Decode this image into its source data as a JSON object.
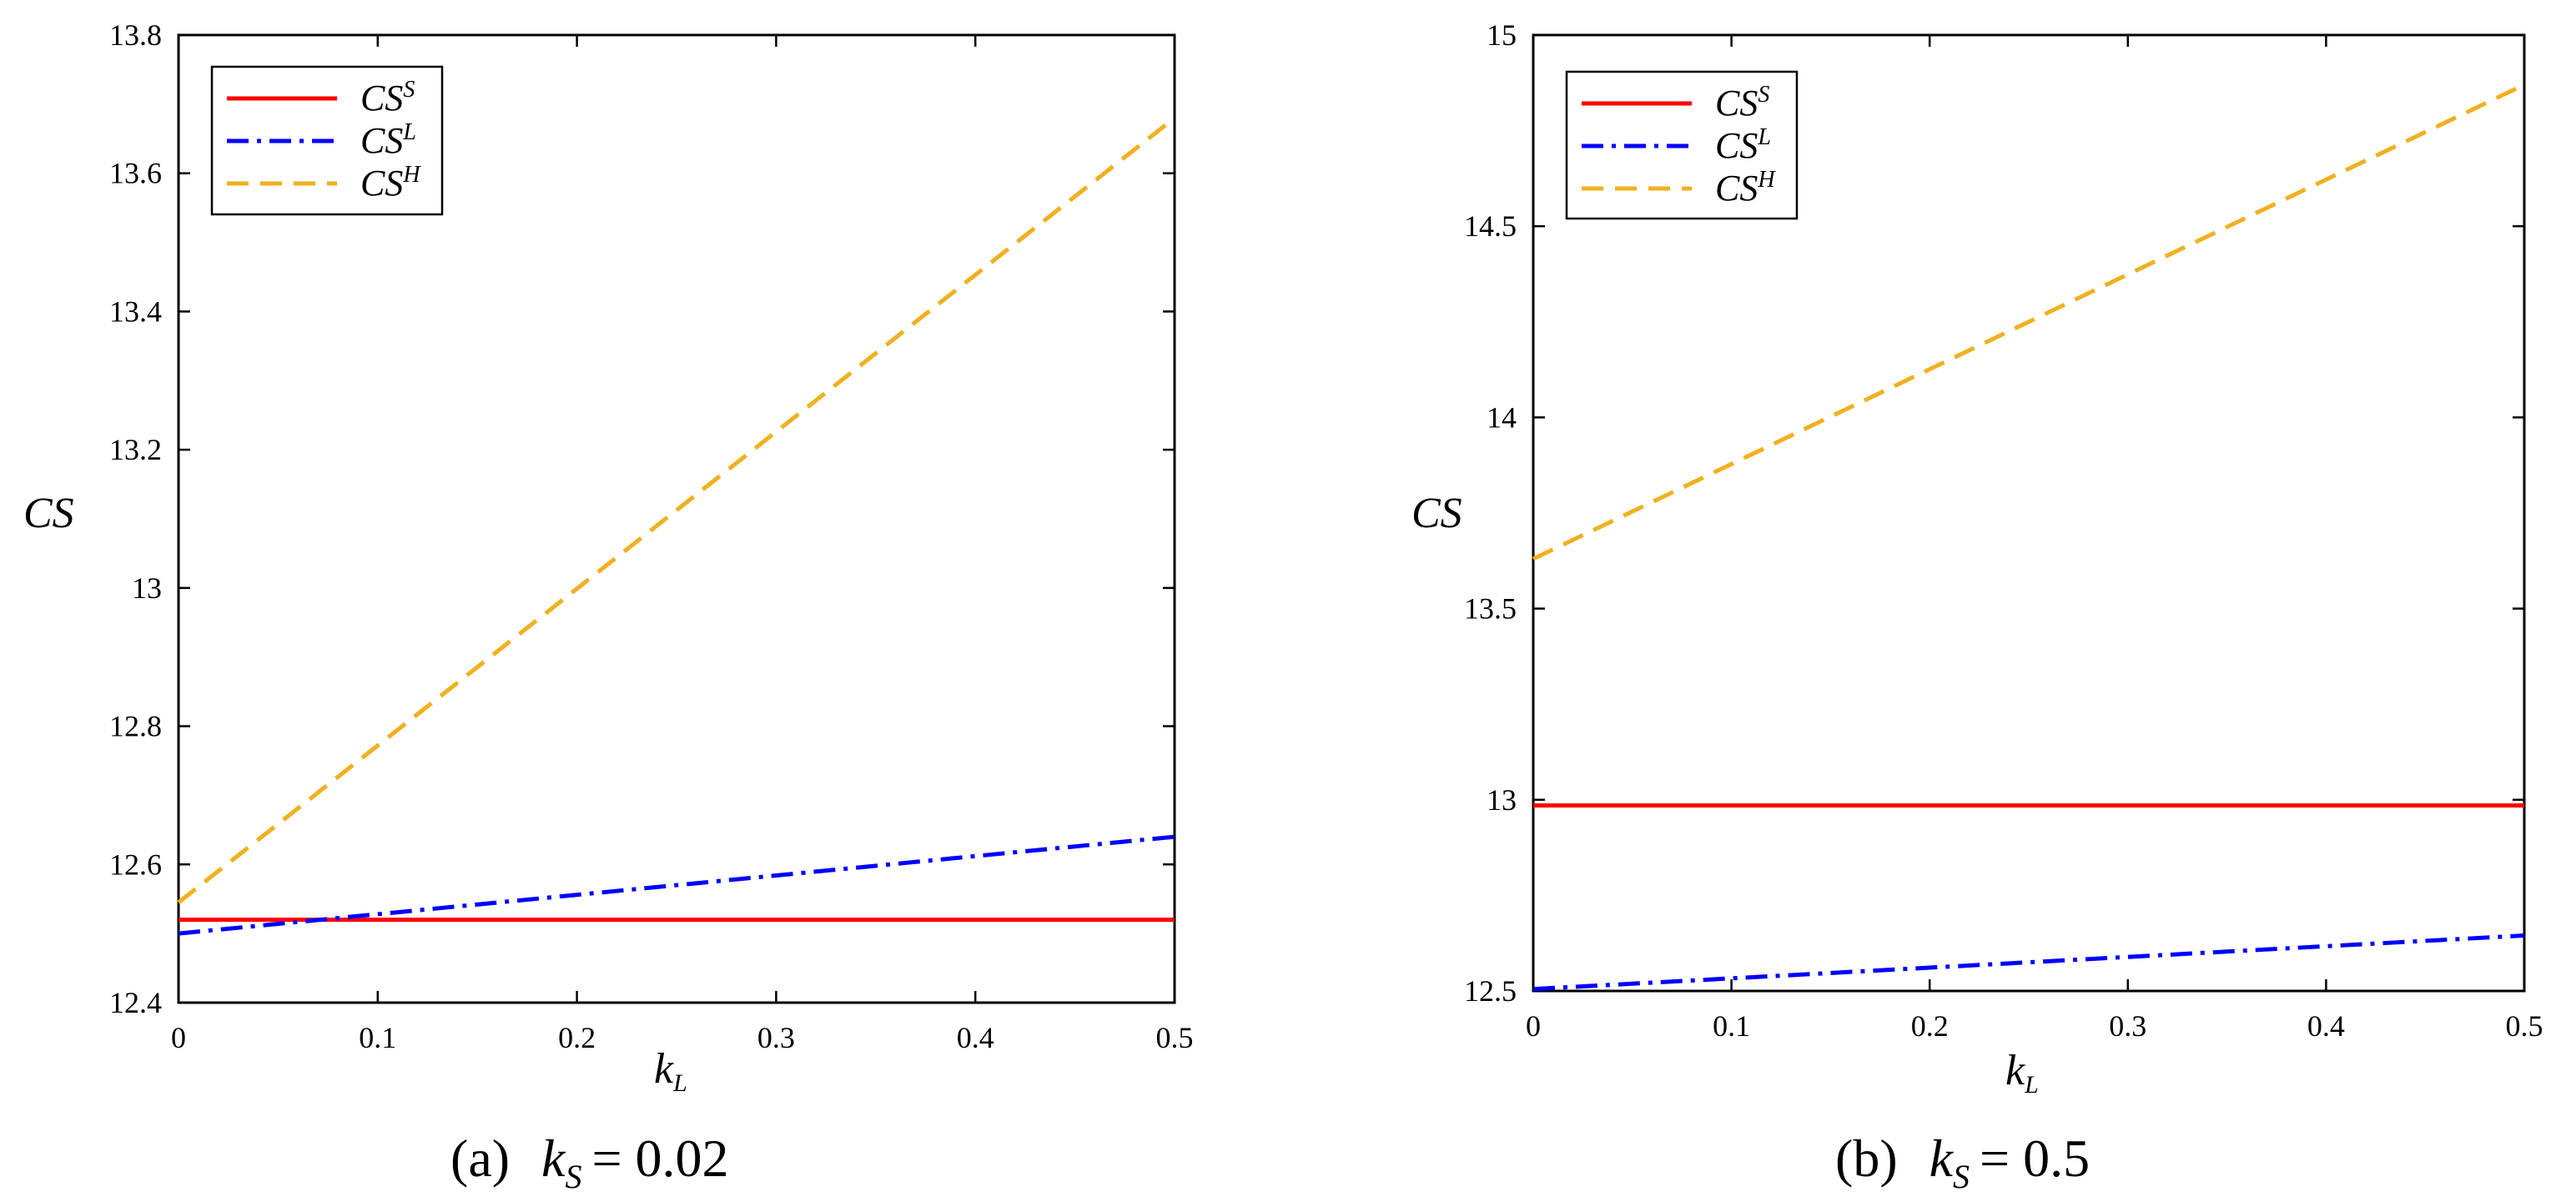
{
  "chart_data": [
    {
      "type": "line",
      "id": "a",
      "xlabel": "k",
      "xlabel_sub": "L",
      "ylabel": "CS",
      "xlim": [
        0,
        0.5
      ],
      "ylim": [
        12.4,
        13.8
      ],
      "xticks": [
        0,
        0.1,
        0.2,
        0.3,
        0.4,
        0.5
      ],
      "xtick_labels": [
        "0",
        "0.1",
        "0.2",
        "0.3",
        "0.4",
        "0.5"
      ],
      "yticks": [
        12.4,
        12.6,
        12.8,
        13.0,
        13.2,
        13.4,
        13.6,
        13.8
      ],
      "ytick_labels": [
        "12.4",
        "12.6",
        "12.8",
        "13",
        "13.2",
        "13.4",
        "13.6",
        "13.8"
      ],
      "legend_position": "top-left",
      "caption": {
        "letter": "(a)",
        "var": "k",
        "sub": "S",
        "eq": "= 0.02"
      },
      "series": [
        {
          "name": "CS",
          "sup": "S",
          "color": "#ff0000",
          "dash": "solid",
          "x": [
            0,
            0.5
          ],
          "y": [
            12.52,
            12.52
          ]
        },
        {
          "name": "CS",
          "sup": "L",
          "color": "#0000ff",
          "dash": "dashdot",
          "x": [
            0,
            0.5
          ],
          "y": [
            12.5,
            12.64
          ]
        },
        {
          "name": "CS",
          "sup": "H",
          "color": "#f0b020",
          "dash": "dashed",
          "x": [
            0,
            0.5
          ],
          "y": [
            12.545,
            13.68
          ]
        }
      ]
    },
    {
      "type": "line",
      "id": "b",
      "xlabel": "k",
      "xlabel_sub": "L",
      "ylabel": "CS",
      "xlim": [
        0,
        0.5
      ],
      "ylim": [
        12.5,
        15
      ],
      "xticks": [
        0,
        0.1,
        0.2,
        0.3,
        0.4,
        0.5
      ],
      "xtick_labels": [
        "0",
        "0.1",
        "0.2",
        "0.3",
        "0.4",
        "0.5"
      ],
      "yticks": [
        12.5,
        13,
        13.5,
        14,
        14.5,
        15
      ],
      "ytick_labels": [
        "12.5",
        "13",
        "13.5",
        "14",
        "14.5",
        "15"
      ],
      "legend_position": "top-left",
      "caption": {
        "letter": "(b)",
        "var": "k",
        "sub": "S",
        "eq": "= 0.5"
      },
      "series": [
        {
          "name": "CS",
          "sup": "S",
          "color": "#ff0000",
          "dash": "solid",
          "x": [
            0,
            0.5
          ],
          "y": [
            12.985,
            12.985
          ]
        },
        {
          "name": "CS",
          "sup": "L",
          "color": "#0000ff",
          "dash": "dashdot",
          "x": [
            0,
            0.5
          ],
          "y": [
            12.505,
            12.645
          ]
        },
        {
          "name": "CS",
          "sup": "H",
          "color": "#f0b020",
          "dash": "dashed",
          "x": [
            0,
            0.5
          ],
          "y": [
            13.63,
            14.87
          ]
        }
      ]
    }
  ]
}
